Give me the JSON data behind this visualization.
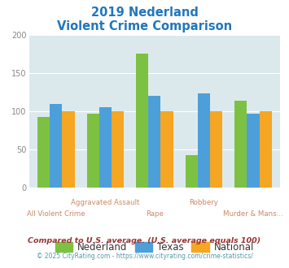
{
  "title_line1": "2019 Nederland",
  "title_line2": "Violent Crime Comparison",
  "categories": [
    "All Violent Crime",
    "Aggravated Assault",
    "Rape",
    "Robbery",
    "Murder & Mans..."
  ],
  "nederland": [
    93,
    97,
    175,
    42,
    114
  ],
  "texas": [
    110,
    105,
    120,
    123,
    97
  ],
  "national": [
    100,
    100,
    100,
    100,
    100
  ],
  "color_nederland": "#7dc142",
  "color_texas": "#4d9fda",
  "color_national": "#f5a623",
  "ylim": [
    0,
    200
  ],
  "yticks": [
    0,
    50,
    100,
    150,
    200
  ],
  "plot_bg": "#dce9ec",
  "fig_bg": "#ffffff",
  "legend_labels": [
    "Nederland",
    "Texas",
    "National"
  ],
  "footnote1": "Compared to U.S. average. (U.S. average equals 100)",
  "footnote2": "© 2025 CityRating.com - https://www.cityrating.com/crime-statistics/",
  "title_color": "#2277bb",
  "footnote1_color": "#993333",
  "footnote2_color": "#5599aa",
  "xlabel_color_top": "#cc8866",
  "xlabel_color_bot": "#cc8866",
  "legend_text_color": "#333333",
  "ytick_color": "#888888"
}
